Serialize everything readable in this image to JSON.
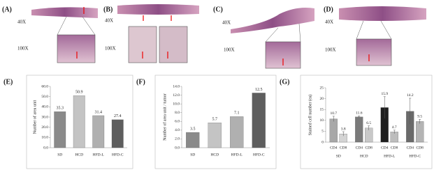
{
  "panels": [
    {
      "label": "(A)",
      "top": "40X",
      "bottom": "100X"
    },
    {
      "label": "(B)",
      "top": "40X",
      "bottom": "100X"
    },
    {
      "label": "(C)",
      "top": "40X",
      "bottom": "100X"
    },
    {
      "label": "(D)",
      "top": "40X",
      "bottom": "100X"
    }
  ],
  "chart_data": [
    {
      "type": "bar",
      "panel": "(E)",
      "y_label": "Number of area unit",
      "categories": [
        "SD",
        "HCD",
        "HFD-L",
        "HFD-C"
      ],
      "values": [
        35.3,
        50.9,
        31.4,
        27.4
      ],
      "colors": [
        "#8a8a8a",
        "#c4c4c4",
        "#b0b0b0",
        "#5e5e5e"
      ],
      "ylim": [
        0,
        60
      ],
      "yticks": [
        {
          "value": 0,
          "label": "0.0"
        },
        {
          "value": 10,
          "label": "10.0"
        },
        {
          "value": 20,
          "label": "20.0"
        },
        {
          "value": 30,
          "label": "30.0"
        },
        {
          "value": 40,
          "label": "40.0"
        },
        {
          "value": 50,
          "label": "50.0"
        },
        {
          "value": 60,
          "label": "60.0"
        }
      ]
    },
    {
      "type": "bar",
      "panel": "(F)",
      "y_label": "Number of area unit / tumor",
      "categories": [
        "SD",
        "HCD",
        "HFD-L",
        "HFD-C"
      ],
      "values": [
        3.5,
        5.7,
        7.1,
        12.5
      ],
      "colors": [
        "#8a8a8a",
        "#c4c4c4",
        "#b0b0b0",
        "#5e5e5e"
      ],
      "ylim": [
        0,
        14
      ],
      "yticks": [
        {
          "value": 0,
          "label": "0.0"
        },
        {
          "value": 2,
          "label": "2.0"
        },
        {
          "value": 4,
          "label": "4.0"
        },
        {
          "value": 6,
          "label": "6.0"
        },
        {
          "value": 8,
          "label": "8.0"
        },
        {
          "value": 10,
          "label": "10.0"
        },
        {
          "value": 12,
          "label": "12.0"
        },
        {
          "value": 14,
          "label": "14.0"
        }
      ]
    },
    {
      "type": "bar",
      "panel": "(G)",
      "y_label": "Stained cell number (ea)",
      "categories": [
        "SD",
        "HCD",
        "HFD-L",
        "HFD-C"
      ],
      "series": [
        {
          "name": "CD4",
          "colors": [
            "#a8a8a8",
            "#7a7a7a",
            "#1e1e1e",
            "#6a6a6a"
          ],
          "values": [
            10.7,
            11.6,
            15.9,
            14.2
          ],
          "errors": [
            1.2,
            0.5,
            5.0,
            6.0
          ]
        },
        {
          "name": "CD8",
          "colors": [
            "#d4d4d4",
            "#c8c8c8",
            "#bdbdbd",
            "#b4b4b4"
          ],
          "values": [
            3.8,
            6.5,
            4.7,
            9.5
          ],
          "errors": [
            1.0,
            1.0,
            0.8,
            1.0
          ]
        }
      ],
      "ylim": [
        0,
        25
      ],
      "yticks": [
        0,
        5,
        10,
        15,
        20,
        25
      ]
    }
  ]
}
